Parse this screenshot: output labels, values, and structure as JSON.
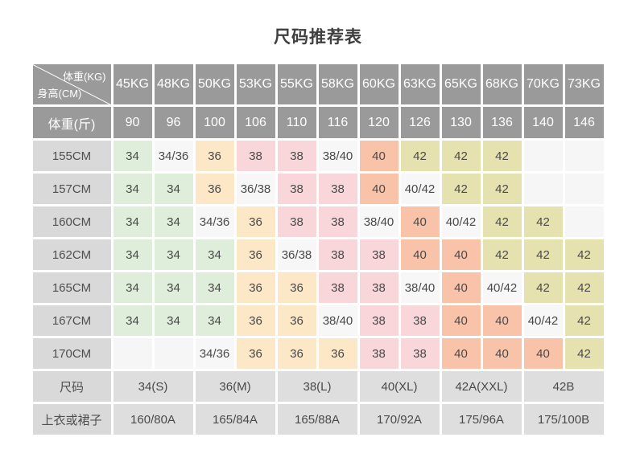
{
  "title": "尺码推荐表",
  "colors": {
    "header_bg": "#9a9a9a",
    "header_text": "#ffffff",
    "label_bg": "#d9d9d9",
    "footer_value_bg": "#dedede",
    "cell_34": "#deeeda",
    "cell_36": "#fce7c7",
    "cell_38": "#f8d6da",
    "cell_40": "#f9c3a9",
    "cell_42": "#e6e2af",
    "cell_combo": "#f7f7f7",
    "cell_empty": "#f6f6f6"
  },
  "chart_data": {
    "type": "table",
    "title": "尺码推荐表",
    "corner": {
      "top_right": "体重(KG)",
      "bottom_left": "身高(CM)"
    },
    "weight_kg_headers": [
      "45KG",
      "48KG",
      "50KG",
      "53KG",
      "55KG",
      "58KG",
      "60KG",
      "63KG",
      "65KG",
      "68KG",
      "70KG",
      "73KG"
    ],
    "weight_jin_row": {
      "label": "体重(斤)",
      "values": [
        "90",
        "96",
        "100",
        "106",
        "110",
        "116",
        "120",
        "126",
        "130",
        "136",
        "140",
        "146"
      ]
    },
    "height_rows": [
      {
        "label": "155CM",
        "cells": [
          "34",
          "34/36",
          "36",
          "38",
          "38",
          "38/40",
          "40",
          "42",
          "42",
          "42",
          "",
          ""
        ]
      },
      {
        "label": "157CM",
        "cells": [
          "34",
          "34",
          "36",
          "36/38",
          "38",
          "38",
          "40",
          "40/42",
          "42",
          "42",
          "",
          ""
        ]
      },
      {
        "label": "160CM",
        "cells": [
          "34",
          "34",
          "34/36",
          "36",
          "38",
          "38",
          "38/40",
          "40",
          "40/42",
          "42",
          "42",
          ""
        ]
      },
      {
        "label": "162CM",
        "cells": [
          "34",
          "34",
          "34",
          "36",
          "36/38",
          "38",
          "38",
          "40",
          "40",
          "42",
          "42",
          "42"
        ]
      },
      {
        "label": "165CM",
        "cells": [
          "34",
          "34",
          "34",
          "36",
          "36",
          "38",
          "38",
          "38/40",
          "40",
          "40/42",
          "42",
          "42"
        ]
      },
      {
        "label": "167CM",
        "cells": [
          "34",
          "34",
          "34",
          "36",
          "36",
          "38/40",
          "38",
          "38",
          "40",
          "40",
          "40/42",
          "42"
        ]
      },
      {
        "label": "170CM",
        "cells": [
          "",
          "",
          "34/36",
          "36",
          "36",
          "36",
          "38",
          "38",
          "40",
          "40",
          "40",
          "42"
        ]
      }
    ],
    "size_row": {
      "label": "尺码",
      "values": [
        "34(S)",
        "36(M)",
        "38(L)",
        "40(XL)",
        "42A(XXL)",
        "42B"
      ]
    },
    "garment_row": {
      "label": "上衣或裙子",
      "values": [
        "160/80A",
        "165/84A",
        "165/88A",
        "170/92A",
        "175/96A",
        "175/100B"
      ]
    }
  }
}
